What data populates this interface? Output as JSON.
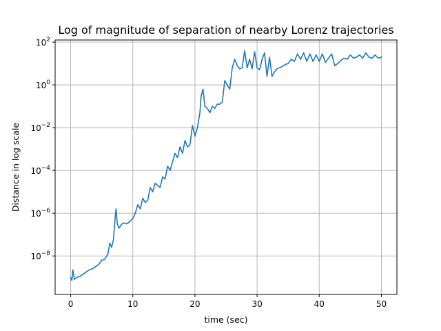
{
  "chart_data": {
    "type": "line",
    "title": "Log of magnitude of separation of nearby Lorenz trajectories",
    "xlabel": "time (sec)",
    "ylabel": "Distance in log scale",
    "yscale": "log",
    "xlim": [
      -2.5,
      52.5
    ],
    "ylim_log10": [
      -9.8,
      2.1
    ],
    "grid": true,
    "series_color": "#1f77b4",
    "x_ticks": [
      {
        "value": 0,
        "label": "0"
      },
      {
        "value": 10,
        "label": "10"
      },
      {
        "value": 20,
        "label": "20"
      },
      {
        "value": 30,
        "label": "30"
      },
      {
        "value": 40,
        "label": "40"
      },
      {
        "value": 50,
        "label": "50"
      }
    ],
    "y_ticks": [
      {
        "log10": -8,
        "base": "10",
        "exp": "−8"
      },
      {
        "log10": -6,
        "base": "10",
        "exp": "−6"
      },
      {
        "log10": -4,
        "base": "10",
        "exp": "−4"
      },
      {
        "log10": -2,
        "base": "10",
        "exp": "−2"
      },
      {
        "log10": 0,
        "base": "10",
        "exp": "0"
      },
      {
        "log10": 2,
        "base": "10",
        "exp": "2"
      }
    ],
    "series": [
      {
        "x": [
          0,
          0.2,
          0.35,
          0.6,
          1.0,
          1.5,
          2.0,
          2.5,
          3.0,
          3.5,
          4.0,
          4.5,
          5.0,
          5.5,
          6.0,
          6.3,
          6.6,
          6.9,
          7.1,
          7.3,
          7.5,
          7.8,
          8.1,
          8.5,
          9.0,
          9.5,
          10.0,
          10.4,
          10.8,
          11.2,
          11.6,
          12.0,
          12.4,
          12.8,
          13.2,
          13.6,
          14.0,
          14.4,
          14.8,
          15.2,
          15.6,
          16.0,
          16.4,
          16.8,
          17.2,
          17.6,
          18.0,
          18.4,
          18.8,
          19.2,
          19.6,
          20.0,
          20.4,
          20.8,
          21.0,
          21.3,
          21.6,
          22.0,
          22.4,
          22.8,
          23.2,
          23.6,
          24.0,
          24.4,
          24.8,
          25.2,
          25.6,
          26.0,
          26.4,
          26.8,
          27.2,
          27.6,
          28.0,
          28.4,
          28.8,
          29.2,
          29.6,
          30.0,
          30.4,
          30.8,
          31.2,
          31.6,
          32.0,
          32.4,
          32.8,
          33.2,
          33.6,
          34.0,
          34.5,
          35.0,
          35.5,
          36.0,
          36.5,
          37.0,
          37.5,
          38.0,
          38.5,
          39.0,
          39.5,
          40.0,
          40.5,
          41.0,
          41.5,
          42.0,
          42.5,
          43.0,
          43.5,
          44.0,
          44.5,
          45.0,
          45.5,
          46.0,
          46.5,
          47.0,
          47.5,
          48.0,
          48.5,
          49.0,
          49.5,
          50.0
        ],
        "log10y": [
          -9.0,
          -9.15,
          -8.65,
          -9.1,
          -9.0,
          -8.95,
          -8.85,
          -8.75,
          -8.65,
          -8.6,
          -8.5,
          -8.4,
          -8.2,
          -8.15,
          -7.9,
          -7.4,
          -7.6,
          -7.2,
          -6.4,
          -5.8,
          -6.5,
          -6.7,
          -6.55,
          -6.45,
          -6.5,
          -6.4,
          -6.25,
          -6.0,
          -5.6,
          -5.8,
          -5.3,
          -5.5,
          -5.4,
          -4.8,
          -5.0,
          -4.6,
          -4.7,
          -4.8,
          -4.3,
          -4.4,
          -3.8,
          -4.0,
          -3.6,
          -3.2,
          -3.4,
          -2.9,
          -3.2,
          -2.6,
          -2.9,
          -2.8,
          -1.9,
          -2.4,
          -2.0,
          -1.3,
          -0.5,
          -0.2,
          -1.0,
          -1.1,
          -1.3,
          -1.0,
          -1.1,
          -0.9,
          -0.9,
          -0.8,
          0.2,
          0.0,
          -0.2,
          0.8,
          1.2,
          0.9,
          0.75,
          0.8,
          1.6,
          0.8,
          1.2,
          0.75,
          1.55,
          0.8,
          0.7,
          1.2,
          1.5,
          0.4,
          1.3,
          0.4,
          0.6,
          0.75,
          0.8,
          0.85,
          0.95,
          1.0,
          1.2,
          1.1,
          1.45,
          1.2,
          1.5,
          1.1,
          1.45,
          1.1,
          1.4,
          1.1,
          1.45,
          1.05,
          1.25,
          1.45,
          0.9,
          1.0,
          1.15,
          1.25,
          1.2,
          1.4,
          1.25,
          1.3,
          1.4,
          1.25,
          1.5,
          1.3,
          1.25,
          1.4,
          1.25,
          1.3
        ]
      }
    ]
  }
}
